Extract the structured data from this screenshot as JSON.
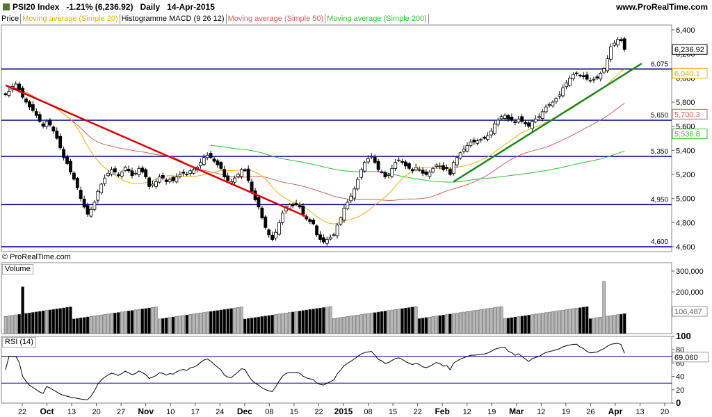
{
  "header": {
    "instrument": "PSI20 Index",
    "change": "-1.21% (6,236.92)",
    "period": "Daily",
    "date": "14-Apr-2015",
    "site": "www.ProRealTime.com"
  },
  "legend": {
    "items": [
      {
        "label": "Price",
        "color": "#000000"
      },
      {
        "label": "Moving average (Simple 20)",
        "color": "#e8b400"
      },
      {
        "label": "Histogramme MACD (9 26 12)",
        "color": "#000000"
      },
      {
        "label": "Moving average (Simple 50)",
        "color": "#d06060"
      },
      {
        "label": "Moving average (Simple 200)",
        "color": "#30c030"
      }
    ]
  },
  "watermark": "© ProRealTime.com",
  "panels": {
    "volume_title": "Volume",
    "rsi_title": "RSI (14)"
  },
  "chart_data": [
    {
      "type": "candlestick",
      "title": "PSI20 Index",
      "ylim": [
        4560,
        6440
      ],
      "yticks": [
        "4,600",
        "4,800",
        "5,000",
        "5,200",
        "5,400",
        "5,600",
        "5,800",
        "6,000",
        "6,200",
        "6,400"
      ],
      "yticks_values": [
        4600,
        4800,
        5000,
        5200,
        5400,
        5600,
        5800,
        6000,
        6200,
        6400
      ],
      "x_tick_labels": [
        "22",
        "Oct",
        "13",
        "20",
        "27",
        "Nov",
        "10",
        "17",
        "24",
        "Dec",
        "08",
        "15",
        "22",
        "2015",
        "08",
        "15",
        "22",
        "Feb",
        "12",
        "19",
        "Mar",
        "12",
        "19",
        "26",
        "Apr",
        "13",
        "20"
      ],
      "horizontal_lines": [
        {
          "value": 6075,
          "label": "6,075"
        },
        {
          "value": 5650,
          "label": "5,650"
        },
        {
          "value": 5350,
          "label": "5,350"
        },
        {
          "value": 4950,
          "label": "4,950"
        },
        {
          "value": 4600,
          "label": "4,600"
        }
      ],
      "trendlines": [
        {
          "color": "#e00000",
          "from": [
            0,
            5940
          ],
          "to": [
            88,
            4850
          ]
        },
        {
          "color": "#1a8a1a",
          "from": [
            131,
            5140
          ],
          "to": [
            186,
            6120
          ]
        }
      ],
      "last_price": "6,236.92",
      "ma20_last": "6,040.1",
      "ma50_last": "5,700.3",
      "ma200_last": "5,536.8",
      "closes": [
        5860,
        5890,
        5930,
        5950,
        5900,
        5840,
        5800,
        5760,
        5730,
        5690,
        5640,
        5600,
        5640,
        5610,
        5560,
        5500,
        5420,
        5340,
        5290,
        5220,
        5160,
        5090,
        5000,
        4930,
        4870,
        4910,
        4970,
        5060,
        5120,
        5170,
        5210,
        5240,
        5220,
        5190,
        5220,
        5260,
        5230,
        5190,
        5210,
        5250,
        5220,
        5180,
        5100,
        5120,
        5140,
        5180,
        5170,
        5140,
        5160,
        5150,
        5180,
        5200,
        5210,
        5200,
        5230,
        5240,
        5260,
        5300,
        5340,
        5360,
        5340,
        5310,
        5280,
        5250,
        5180,
        5150,
        5140,
        5170,
        5200,
        5240,
        5230,
        5150,
        5060,
        4990,
        4930,
        4840,
        4760,
        4700,
        4660,
        4720,
        4800,
        4880,
        4930,
        4950,
        4940,
        4950,
        4930,
        4870,
        4830,
        4810,
        4790,
        4700,
        4660,
        4640,
        4660,
        4680,
        4700,
        4780,
        4840,
        4920,
        4970,
        5020,
        5080,
        5160,
        5240,
        5300,
        5330,
        5350,
        5300,
        5240,
        5220,
        5180,
        5200,
        5250,
        5300,
        5320,
        5300,
        5270,
        5250,
        5230,
        5260,
        5240,
        5210,
        5200,
        5220,
        5250,
        5280,
        5270,
        5240,
        5250,
        5200,
        5300,
        5340,
        5380,
        5410,
        5440,
        5470,
        5470,
        5480,
        5490,
        5500,
        5520,
        5560,
        5620,
        5650,
        5680,
        5690,
        5660,
        5650,
        5630,
        5660,
        5640,
        5620,
        5600,
        5640,
        5660,
        5680,
        5720,
        5760,
        5780,
        5800,
        5830,
        5860,
        5920,
        5960,
        6000,
        6030,
        6040,
        6020,
        6010,
        5990,
        5980,
        5990,
        6000,
        6040,
        6080,
        6160,
        6260,
        6290,
        6320,
        6310,
        6236.92
      ],
      "volume": {
        "ylim": [
          0,
          320000
        ],
        "yticks_values": [
          100000,
          200000,
          300000
        ],
        "yticks": [
          "100,000",
          "200,000",
          "300,000"
        ],
        "last": "106,487"
      },
      "rsi": {
        "ylim": [
          0,
          100
        ],
        "yticks": [
          "0",
          "20",
          "40",
          "60",
          "80",
          "100"
        ],
        "yticks_values": [
          0,
          20,
          40,
          60,
          80,
          100
        ],
        "levels": [
          30,
          70
        ],
        "last": "69.060"
      }
    }
  ]
}
